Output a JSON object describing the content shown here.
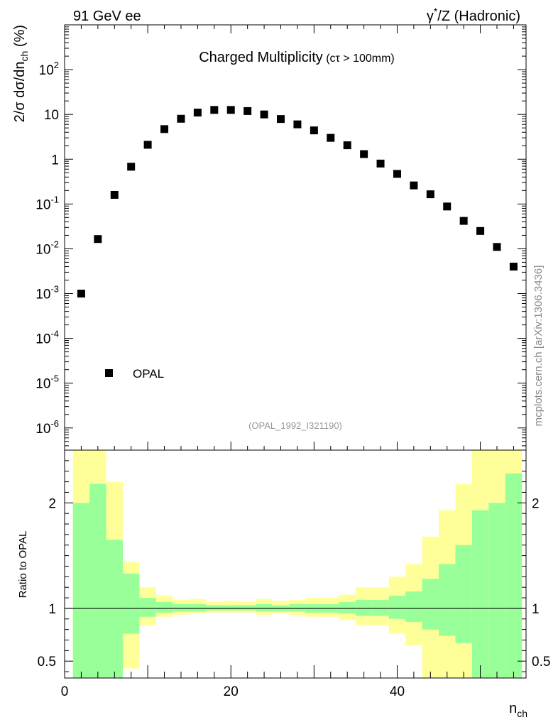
{
  "header": {
    "left": "91 GeV ee",
    "right_prefix": "γ",
    "right_sup": "*",
    "right_suffix": "/Z (Hadronic)"
  },
  "side_label": "mcplots.cern.ch [arXiv:1306.3436]",
  "chart_data": [
    {
      "type": "scatter",
      "title_main": "Charged Multiplicity",
      "title_sub": "(cτ > 100mm)",
      "ylabel_parts": [
        "2/σ dσ/dn",
        "ch",
        " (%)"
      ],
      "yscale": "log",
      "xlim": [
        0,
        55.5
      ],
      "ylim": [
        3.2e-07,
        1000
      ],
      "y_ticks": [
        {
          "value": 1e-06,
          "base": "10",
          "exp": "-6"
        },
        {
          "value": 1e-05,
          "base": "10",
          "exp": "-5"
        },
        {
          "value": 0.0001,
          "base": "10",
          "exp": "-4"
        },
        {
          "value": 0.001,
          "base": "10",
          "exp": "-3"
        },
        {
          "value": 0.01,
          "base": "10",
          "exp": "-2"
        },
        {
          "value": 0.1,
          "base": "10",
          "exp": "-1"
        },
        {
          "value": 1,
          "base": "1",
          "exp": ""
        },
        {
          "value": 10,
          "base": "10",
          "exp": ""
        },
        {
          "value": 100,
          "base": "10",
          "exp": "2"
        }
      ],
      "legend": "OPAL",
      "legend_position": "bottom-left",
      "watermark": "(OPAL_1992_I321190)",
      "series": [
        {
          "name": "OPAL",
          "x": [
            2,
            4,
            6,
            8,
            10,
            12,
            14,
            16,
            18,
            20,
            22,
            24,
            26,
            28,
            30,
            32,
            34,
            36,
            38,
            40,
            42,
            44,
            46,
            48,
            50,
            52,
            54
          ],
          "y": [
            0.001,
            0.0165,
            0.16,
            0.68,
            2.1,
            4.7,
            8.0,
            11.0,
            12.6,
            12.6,
            11.9,
            10.0,
            7.9,
            6.0,
            4.4,
            3.0,
            2.05,
            1.3,
            0.8,
            0.47,
            0.26,
            0.165,
            0.088,
            0.042,
            0.025,
            0.011,
            0.004
          ]
        }
      ]
    },
    {
      "type": "area",
      "ylabel": "Ratio to OPAL",
      "xlabel_parts": [
        "n",
        "ch"
      ],
      "xlim": [
        0,
        55.5
      ],
      "ylim": [
        0.34,
        2.5
      ],
      "y_ticks": [
        0.5,
        1,
        2
      ],
      "x_ticks": [
        0,
        20,
        40
      ],
      "reference": 1,
      "colors": {
        "inner": "#99ff99",
        "outer": "#ffff99"
      },
      "bins": [
        {
          "lo": 1,
          "hi": 3,
          "in_lo": 0.34,
          "in_hi": 2.0,
          "out_lo": 0.34,
          "out_hi": 2.6
        },
        {
          "lo": 3,
          "hi": 5,
          "in_lo": 0.34,
          "in_hi": 2.18,
          "out_lo": 0.34,
          "out_hi": 2.6
        },
        {
          "lo": 5,
          "hi": 7,
          "in_lo": 0.34,
          "in_hi": 1.65,
          "out_lo": 0.34,
          "out_hi": 2.2
        },
        {
          "lo": 7,
          "hi": 9,
          "in_lo": 0.76,
          "in_hi": 1.33,
          "out_lo": 0.43,
          "out_hi": 1.44
        },
        {
          "lo": 9,
          "hi": 11,
          "in_lo": 0.92,
          "in_hi": 1.1,
          "out_lo": 0.84,
          "out_hi": 1.2
        },
        {
          "lo": 11,
          "hi": 13,
          "in_lo": 0.96,
          "in_hi": 1.06,
          "out_lo": 0.92,
          "out_hi": 1.12
        },
        {
          "lo": 13,
          "hi": 15,
          "in_lo": 0.97,
          "in_hi": 1.04,
          "out_lo": 0.94,
          "out_hi": 1.08
        },
        {
          "lo": 15,
          "hi": 17,
          "in_lo": 0.97,
          "in_hi": 1.04,
          "out_lo": 0.95,
          "out_hi": 1.09
        },
        {
          "lo": 17,
          "hi": 19,
          "in_lo": 0.98,
          "in_hi": 1.03,
          "out_lo": 0.96,
          "out_hi": 1.06
        },
        {
          "lo": 19,
          "hi": 21,
          "in_lo": 0.98,
          "in_hi": 1.03,
          "out_lo": 0.96,
          "out_hi": 1.07
        },
        {
          "lo": 21,
          "hi": 23,
          "in_lo": 0.98,
          "in_hi": 1.03,
          "out_lo": 0.96,
          "out_hi": 1.06
        },
        {
          "lo": 23,
          "hi": 25,
          "in_lo": 0.97,
          "in_hi": 1.04,
          "out_lo": 0.94,
          "out_hi": 1.09
        },
        {
          "lo": 25,
          "hi": 27,
          "in_lo": 0.97,
          "in_hi": 1.03,
          "out_lo": 0.95,
          "out_hi": 1.07
        },
        {
          "lo": 27,
          "hi": 29,
          "in_lo": 0.97,
          "in_hi": 1.04,
          "out_lo": 0.93,
          "out_hi": 1.08
        },
        {
          "lo": 29,
          "hi": 31,
          "in_lo": 0.96,
          "in_hi": 1.04,
          "out_lo": 0.92,
          "out_hi": 1.1
        },
        {
          "lo": 31,
          "hi": 33,
          "in_lo": 0.96,
          "in_hi": 1.04,
          "out_lo": 0.92,
          "out_hi": 1.1
        },
        {
          "lo": 33,
          "hi": 35,
          "in_lo": 0.95,
          "in_hi": 1.06,
          "out_lo": 0.89,
          "out_hi": 1.13
        },
        {
          "lo": 35,
          "hi": 37,
          "in_lo": 0.93,
          "in_hi": 1.08,
          "out_lo": 0.84,
          "out_hi": 1.2
        },
        {
          "lo": 37,
          "hi": 39,
          "in_lo": 0.93,
          "in_hi": 1.08,
          "out_lo": 0.84,
          "out_hi": 1.2
        },
        {
          "lo": 39,
          "hi": 41,
          "in_lo": 0.9,
          "in_hi": 1.12,
          "out_lo": 0.76,
          "out_hi": 1.3
        },
        {
          "lo": 41,
          "hi": 43,
          "in_lo": 0.87,
          "in_hi": 1.16,
          "out_lo": 0.65,
          "out_hi": 1.42
        },
        {
          "lo": 43,
          "hi": 45,
          "in_lo": 0.8,
          "in_hi": 1.28,
          "out_lo": 0.34,
          "out_hi": 1.68
        },
        {
          "lo": 45,
          "hi": 47,
          "in_lo": 0.74,
          "in_hi": 1.42,
          "out_lo": 0.34,
          "out_hi": 1.93
        },
        {
          "lo": 47,
          "hi": 49,
          "in_lo": 0.67,
          "in_hi": 1.6,
          "out_lo": 0.34,
          "out_hi": 2.18
        },
        {
          "lo": 49,
          "hi": 51,
          "in_lo": 0.34,
          "in_hi": 1.93,
          "out_lo": 0.34,
          "out_hi": 2.6
        },
        {
          "lo": 51,
          "hi": 53,
          "in_lo": 0.34,
          "in_hi": 2.0,
          "out_lo": 0.34,
          "out_hi": 2.6
        },
        {
          "lo": 53,
          "hi": 55,
          "in_lo": 0.34,
          "in_hi": 2.28,
          "out_lo": 0.34,
          "out_hi": 2.6
        }
      ]
    }
  ]
}
